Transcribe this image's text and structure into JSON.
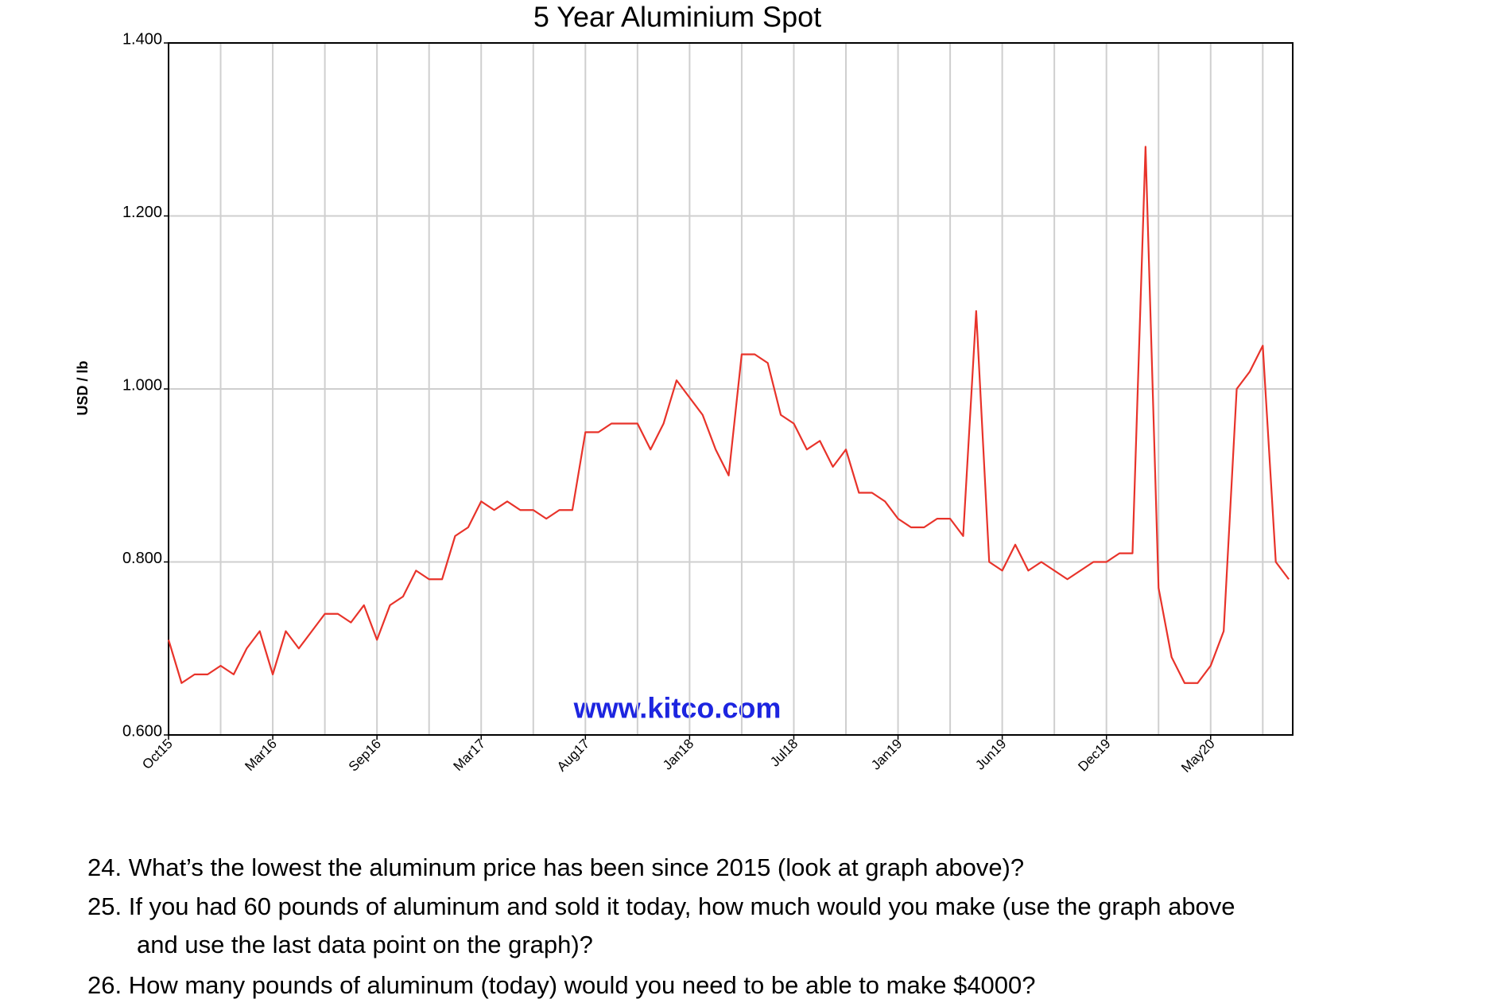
{
  "chart_data": {
    "type": "line",
    "title": "5 Year Aluminium Spot",
    "y_label": "USD / lb",
    "watermark": "www.kitco.com",
    "categories": [
      "Oct15",
      null,
      null,
      null,
      null,
      null,
      null,
      null,
      "Mar16",
      null,
      null,
      null,
      null,
      null,
      null,
      null,
      "Sep16",
      null,
      null,
      null,
      null,
      null,
      null,
      null,
      "Mar17",
      null,
      null,
      null,
      null,
      null,
      null,
      null,
      "Aug17",
      null,
      null,
      null,
      null,
      null,
      null,
      null,
      "Jan18",
      null,
      null,
      null,
      null,
      null,
      null,
      null,
      "Jul18",
      null,
      null,
      null,
      null,
      null,
      null,
      null,
      "Jan19",
      null,
      null,
      null,
      null,
      null,
      null,
      null,
      "Jun19",
      null,
      null,
      null,
      null,
      null,
      null,
      null,
      "Dec19",
      null,
      null,
      null,
      null,
      null,
      null,
      null,
      "May20",
      null,
      null,
      null,
      null,
      null,
      null
    ],
    "series": [
      {
        "name": "Aluminium",
        "color": "#e8332a",
        "values": [
          0.71,
          0.66,
          0.67,
          0.67,
          0.68,
          0.67,
          0.7,
          0.72,
          0.67,
          0.72,
          0.7,
          0.72,
          0.74,
          0.74,
          0.73,
          0.75,
          0.71,
          0.75,
          0.76,
          0.79,
          0.78,
          0.78,
          0.83,
          0.84,
          0.87,
          0.86,
          0.87,
          0.86,
          0.86,
          0.85,
          0.86,
          0.86,
          0.95,
          0.95,
          0.96,
          0.96,
          0.96,
          0.93,
          0.96,
          1.01,
          0.99,
          0.97,
          0.93,
          0.9,
          1.04,
          1.04,
          1.03,
          0.97,
          0.96,
          0.93,
          0.94,
          0.91,
          0.93,
          0.88,
          0.88,
          0.87,
          0.85,
          0.84,
          0.84,
          0.85,
          0.85,
          0.83,
          1.09,
          0.8,
          0.79,
          0.82,
          0.79,
          0.8,
          0.79,
          0.78,
          0.79,
          0.8,
          0.8,
          0.81,
          0.81,
          1.28,
          0.77,
          0.69,
          0.66,
          0.66,
          0.68,
          0.72,
          1.0,
          1.02,
          1.05,
          0.8,
          0.78
        ]
      }
    ],
    "ylim": [
      0.6,
      1.4
    ],
    "yticks": [
      {
        "value": 0.6,
        "label": "0.600"
      },
      {
        "value": 0.8,
        "label": "0.800"
      },
      {
        "value": 1.0,
        "label": "1.000"
      },
      {
        "value": 1.2,
        "label": "1.200"
      },
      {
        "value": 1.4,
        "label": "1.400"
      }
    ],
    "grid": true
  },
  "questions": [
    "24. What’s the lowest the aluminum price has been since 2015 (look at graph above)?",
    "25. If you had 60 pounds of aluminum and sold it today, how much would you make (use the graph above",
    "and use the last data point on the graph)?",
    "26. How many pounds of aluminum (today) would you need to be able to make $4000?"
  ]
}
